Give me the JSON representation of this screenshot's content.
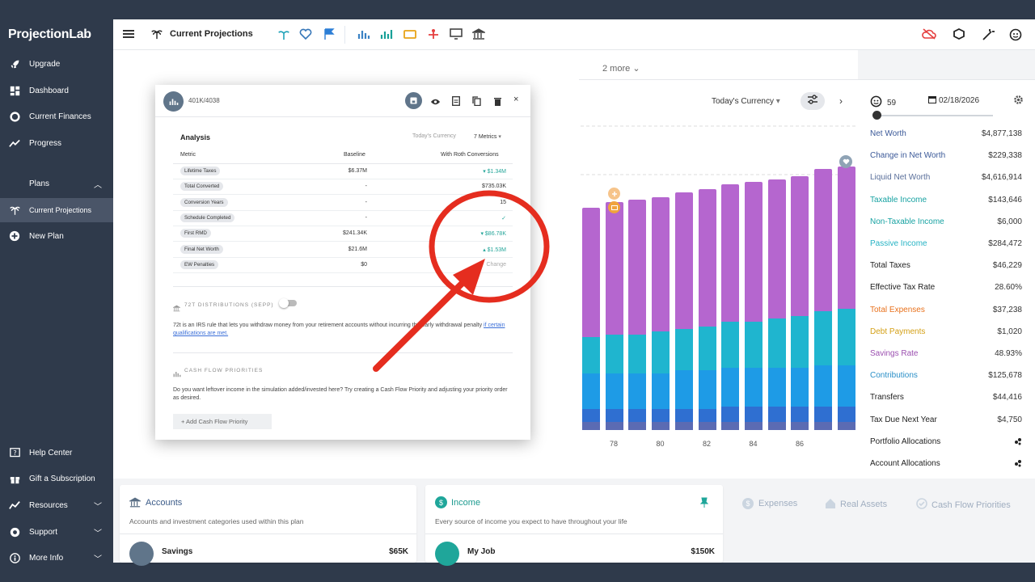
{
  "app": {
    "brand": "ProjectionLab"
  },
  "sidebar": {
    "items": [
      {
        "label": "Upgrade",
        "icon": "rocket-icon"
      },
      {
        "label": "Dashboard",
        "icon": "dashboard-icon"
      },
      {
        "label": "Current Finances",
        "icon": "finances-icon"
      },
      {
        "label": "Progress",
        "icon": "progress-icon"
      }
    ],
    "plans_label": "Plans",
    "plan_items": [
      {
        "label": "Current Projections",
        "icon": "palm-tree-icon"
      },
      {
        "label": "New Plan",
        "icon": "plus-circle-icon"
      }
    ],
    "footer_items": [
      {
        "label": "Help Center",
        "icon": "help-icon"
      },
      {
        "label": "Gift a Subscription",
        "icon": "gift-icon"
      },
      {
        "label": "Resources",
        "icon": "resources-icon"
      },
      {
        "label": "Support",
        "icon": "support-icon"
      },
      {
        "label": "More Info",
        "icon": "info-icon"
      }
    ]
  },
  "topbar": {
    "plan_title": "Current Projections"
  },
  "panel": {
    "more_label": "2 more",
    "currency": "Today's Currency",
    "age": "59",
    "date": "02/18/2026"
  },
  "metrics": [
    {
      "label": "Net Worth",
      "value": "$4,877,138",
      "color": "#3b5998"
    },
    {
      "label": "Change in Net Worth",
      "value": "$229,338",
      "color": "#3b5998"
    },
    {
      "label": "Liquid Net Worth",
      "value": "$4,616,914",
      "color": "#5a6f9a"
    },
    {
      "label": "Taxable Income",
      "value": "$143,646",
      "color": "#17a2a2"
    },
    {
      "label": "Non-Taxable Income",
      "value": "$6,000",
      "color": "#17a2a2"
    },
    {
      "label": "Passive Income",
      "value": "$284,472",
      "color": "#26b3c4"
    },
    {
      "label": "Total Taxes",
      "value": "$46,229",
      "color": "#222222"
    },
    {
      "label": "Effective Tax Rate",
      "value": "28.60%",
      "color": "#222222"
    },
    {
      "label": "Total Expenses",
      "value": "$37,238",
      "color": "#e8711c"
    },
    {
      "label": "Debt Payments",
      "value": "$1,020",
      "color": "#d4a017"
    },
    {
      "label": "Savings Rate",
      "value": "48.93%",
      "color": "#9b4fb0"
    },
    {
      "label": "Contributions",
      "value": "$125,678",
      "color": "#2a8fc7"
    },
    {
      "label": "Transfers",
      "value": "$44,416",
      "color": "#222222"
    },
    {
      "label": "Tax Due Next Year",
      "value": "$4,750",
      "color": "#222222"
    },
    {
      "label": "Portfolio Allocations",
      "value": "",
      "color": "#222222"
    },
    {
      "label": "Account Allocations",
      "value": "",
      "color": "#222222"
    }
  ],
  "chart_data": {
    "type": "bar",
    "x_ticks": [
      "78",
      "80",
      "82",
      "84",
      "86"
    ],
    "colors": {
      "purple": "#b566cf",
      "teal": "#1fb5cf",
      "blue": "#1e9be6",
      "navy": "#2f6fd1",
      "slate": "#5b6bb3"
    },
    "bars": [
      {
        "purple": 0.5,
        "teal": 0.14,
        "blue": 0.14,
        "navy": 0.05,
        "slate": 0.03
      },
      {
        "purple": 0.51,
        "teal": 0.15,
        "blue": 0.14,
        "navy": 0.05,
        "slate": 0.03
      },
      {
        "purple": 0.52,
        "teal": 0.15,
        "blue": 0.14,
        "navy": 0.05,
        "slate": 0.03
      },
      {
        "purple": 0.52,
        "teal": 0.16,
        "blue": 0.14,
        "navy": 0.05,
        "slate": 0.03
      },
      {
        "purple": 0.53,
        "teal": 0.16,
        "blue": 0.15,
        "navy": 0.05,
        "slate": 0.03
      },
      {
        "purple": 0.53,
        "teal": 0.17,
        "blue": 0.15,
        "navy": 0.05,
        "slate": 0.03
      },
      {
        "purple": 0.53,
        "teal": 0.18,
        "blue": 0.15,
        "navy": 0.06,
        "slate": 0.03
      },
      {
        "purple": 0.54,
        "teal": 0.18,
        "blue": 0.15,
        "navy": 0.06,
        "slate": 0.03
      },
      {
        "purple": 0.54,
        "teal": 0.19,
        "blue": 0.15,
        "navy": 0.06,
        "slate": 0.03
      },
      {
        "purple": 0.54,
        "teal": 0.2,
        "blue": 0.15,
        "navy": 0.06,
        "slate": 0.03
      },
      {
        "purple": 0.55,
        "teal": 0.21,
        "blue": 0.16,
        "navy": 0.06,
        "slate": 0.03
      },
      {
        "purple": 0.55,
        "teal": 0.22,
        "blue": 0.16,
        "navy": 0.06,
        "slate": 0.03
      }
    ]
  },
  "cards": {
    "accounts": {
      "title": "Accounts",
      "subtitle": "Accounts and investment categories used within this plan",
      "row_label": "Savings",
      "row_value": "$65K"
    },
    "income": {
      "title": "Income",
      "subtitle": "Every source of income you expect to have throughout your life",
      "row_label": "My Job",
      "row_value": "$150K"
    },
    "tabs": [
      "Expenses",
      "Real Assets",
      "Cash Flow Priorities"
    ]
  },
  "modal": {
    "account_name": "401K/4038",
    "section_title": "Analysis",
    "today_currency": "Today's Currency",
    "metrics_select": "7 Metrics",
    "col_metric": "Metric",
    "col_baseline": "Baseline",
    "col_roth": "With Roth Conversions",
    "rows": [
      {
        "metric": "Lifetime Taxes",
        "baseline": "$6.37M",
        "roth": "▾ $1.34M",
        "teal": true
      },
      {
        "metric": "Total Converted",
        "baseline": "-",
        "roth": "$735.03K",
        "teal": false
      },
      {
        "metric": "Conversion Years",
        "baseline": "-",
        "roth": "15",
        "teal": false
      },
      {
        "metric": "Schedule Completed",
        "baseline": "-",
        "roth": "✓",
        "teal": true
      },
      {
        "metric": "First RMD",
        "baseline": "$241.34K",
        "roth": "▾ $86.78K",
        "teal": true
      },
      {
        "metric": "Final Net Worth",
        "baseline": "$21.6M",
        "roth": "▴ $1.53M",
        "teal": true
      },
      {
        "metric": "EW Penalties",
        "baseline": "$0",
        "roth": "Change",
        "teal": false
      }
    ],
    "distributions_title": "72T DISTRIBUTIONS (SEPP)",
    "distributions_text": "72t is an IRS rule that lets you withdraw money from your retirement accounts without incurring the early withdrawal penalty",
    "distributions_link": "if certain qualifications are met.",
    "cfp_title": "CASH FLOW PRIORITIES",
    "cfp_text": "Do you want leftover income in the simulation added/invested here? Try creating a Cash Flow Priority and adjusting your priority order as desired.",
    "add_button": "+   Add Cash Flow Priority"
  }
}
